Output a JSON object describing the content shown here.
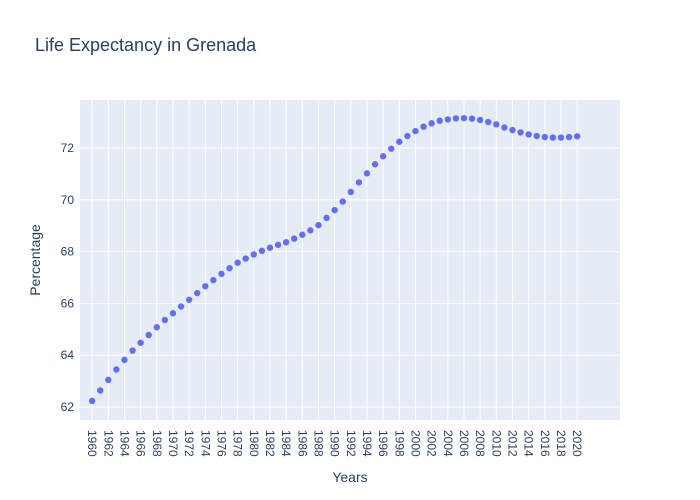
{
  "chart_data": {
    "type": "scatter",
    "title": "Life Expectancy in Grenada",
    "xlabel": "Years",
    "ylabel": "Percentage",
    "xlim": [
      1958.5,
      2025.3
    ],
    "ylim": [
      61.5,
      73.85
    ],
    "yticks": [
      62,
      64,
      66,
      68,
      70,
      72
    ],
    "xticks": [
      1960,
      1962,
      1964,
      1966,
      1968,
      1970,
      1972,
      1974,
      1976,
      1978,
      1980,
      1982,
      1984,
      1986,
      1988,
      1990,
      1992,
      1994,
      1996,
      1998,
      2000,
      2002,
      2004,
      2006,
      2008,
      2010,
      2012,
      2014,
      2016,
      2018,
      2020
    ],
    "grid": true,
    "marker_color": "#636efa",
    "plot_background": "#e5ecf6",
    "x": [
      1960,
      1961,
      1962,
      1963,
      1964,
      1965,
      1966,
      1967,
      1968,
      1969,
      1970,
      1971,
      1972,
      1973,
      1974,
      1975,
      1976,
      1977,
      1978,
      1979,
      1980,
      1981,
      1982,
      1983,
      1984,
      1985,
      1986,
      1987,
      1988,
      1989,
      1990,
      1991,
      1992,
      1993,
      1994,
      1995,
      1996,
      1997,
      1998,
      1999,
      2000,
      2001,
      2002,
      2003,
      2004,
      2005,
      2006,
      2007,
      2008,
      2009,
      2010,
      2011,
      2012,
      2013,
      2014,
      2015,
      2016,
      2017,
      2018,
      2019,
      2020
    ],
    "y": [
      62.24,
      62.64,
      63.05,
      63.45,
      63.82,
      64.18,
      64.48,
      64.78,
      65.08,
      65.36,
      65.62,
      65.88,
      66.14,
      66.4,
      66.66,
      66.9,
      67.14,
      67.36,
      67.57,
      67.73,
      67.89,
      68.03,
      68.15,
      68.26,
      68.36,
      68.5,
      68.65,
      68.82,
      69.02,
      69.3,
      69.6,
      69.93,
      70.3,
      70.67,
      71.02,
      71.37,
      71.68,
      71.97,
      72.24,
      72.46,
      72.65,
      72.82,
      72.95,
      73.05,
      73.1,
      73.14,
      73.15,
      73.13,
      73.08,
      73.0,
      72.91,
      72.79,
      72.69,
      72.6,
      72.52,
      72.46,
      72.42,
      72.4,
      72.4,
      72.42,
      72.45
    ]
  }
}
